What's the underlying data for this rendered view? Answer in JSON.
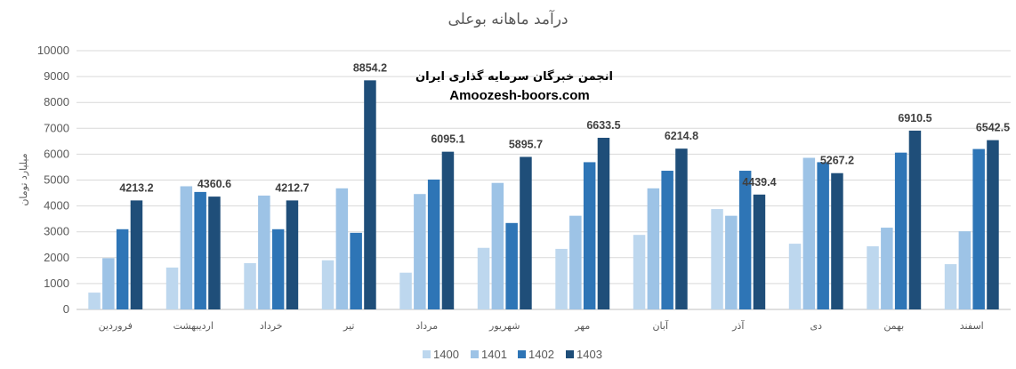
{
  "chart_data": {
    "type": "bar",
    "title": "درآمد ماهانه بوعلی",
    "ylabel": "میلیارد تومان",
    "xlabel": "",
    "ylim": [
      0,
      10000
    ],
    "yticks": [
      0,
      1000,
      2000,
      3000,
      4000,
      5000,
      6000,
      7000,
      8000,
      9000,
      10000
    ],
    "grid": true,
    "legend_position": "bottom",
    "categories": [
      "فروردین",
      "اردیبهشت",
      "خرداد",
      "تیر",
      "مرداد",
      "شهریور",
      "مهر",
      "آبان",
      "آذر",
      "دی",
      "بهمن",
      "اسفند"
    ],
    "series": [
      {
        "name": "1400",
        "color": "#bdd7ee",
        "values": [
          650,
          1620,
          1790,
          1900,
          1420,
          2380,
          2340,
          2880,
          3880,
          2540,
          2440,
          1750
        ]
      },
      {
        "name": "1401",
        "color": "#9dc3e6",
        "values": [
          1980,
          4760,
          4400,
          4680,
          4460,
          4890,
          3620,
          4680,
          3620,
          5860,
          3160,
          3020
        ]
      },
      {
        "name": "1402",
        "color": "#2e75b6",
        "values": [
          3100,
          4540,
          3100,
          2960,
          5020,
          3340,
          5690,
          5360,
          5360,
          5690,
          6060,
          6200
        ]
      },
      {
        "name": "1403",
        "color": "#1f4e79",
        "values": [
          4213.2,
          4360.6,
          4212.7,
          8854.2,
          6095.1,
          5895.7,
          6633.5,
          6214.8,
          4439.4,
          5267.2,
          6910.5,
          6542.5
        ]
      }
    ],
    "data_labels": [
      "4213.2",
      "4360.6",
      "4212.7",
      "8854.2",
      "6095.1",
      "5895.7",
      "6633.5",
      "6214.8",
      "4439.4",
      "5267.2",
      "6910.5",
      "6542.5"
    ]
  },
  "watermark": {
    "line1": "انجمن خبرگان سرمایه گذاری ایران",
    "line2": "Amoozesh-boors.com"
  },
  "colors": {
    "grid": "#d9d9d9",
    "axis": "#bfbfbf",
    "text": "#595959"
  }
}
